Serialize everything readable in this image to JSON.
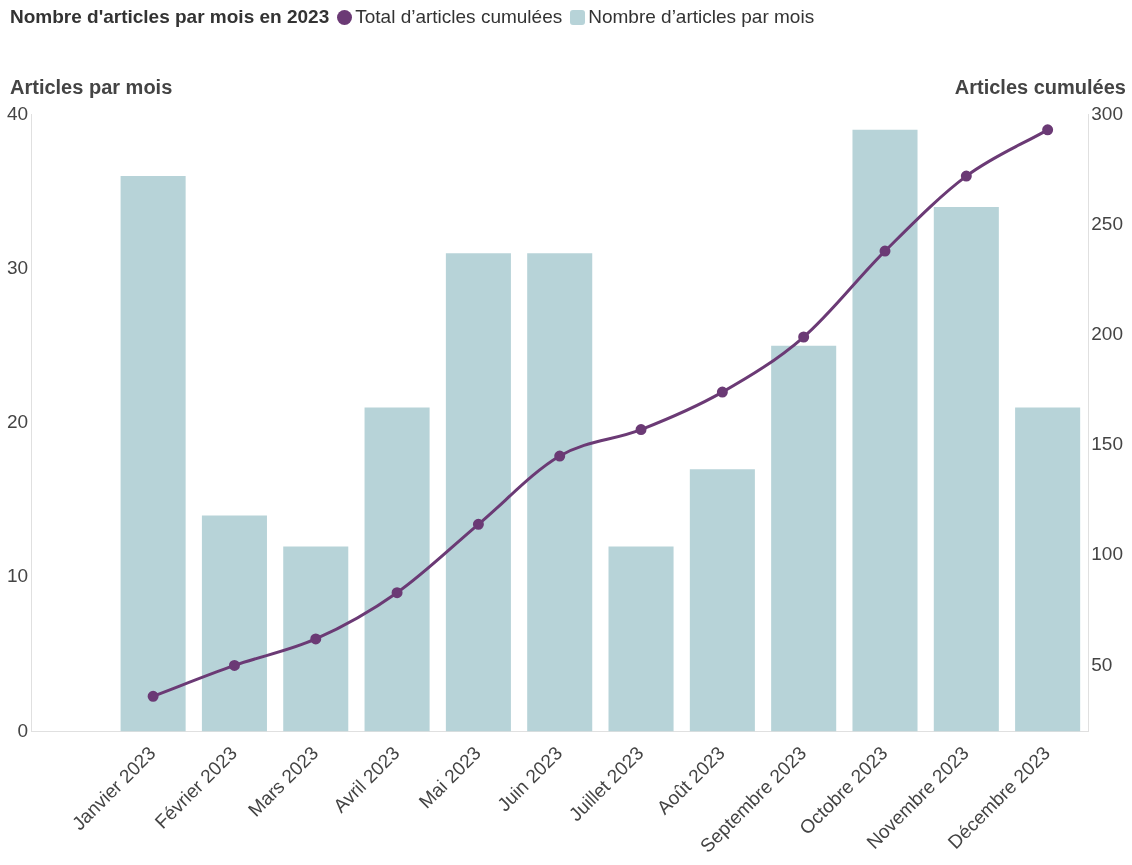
{
  "chart_data": {
    "type": "bar",
    "title": "Nombre d'articles par mois en 2023",
    "ylabel": "Articles par mois",
    "y2label": "Articles cumulées",
    "categories": [
      null,
      "Janvier 2023",
      "Février 2023",
      "Mars 2023",
      "Avril 2023",
      "Mai 2023",
      "Juin 2023",
      "Juillet 2023",
      "Août 2023",
      "Septembre 2023",
      "Octobre 2023",
      "Novembre 2023",
      "Décembre 2023"
    ],
    "series": [
      {
        "name": "Total d’articles cumulées",
        "type": "line",
        "axis": "y2",
        "color": "#6b3a75",
        "marker": "circle",
        "values": [
          null,
          36,
          50,
          62,
          83,
          114,
          145,
          157,
          174,
          199,
          238,
          272,
          293
        ]
      },
      {
        "name": "Nombre d’articles par mois",
        "color": "#b7d3d8",
        "values": [
          null,
          36,
          14,
          12,
          21,
          31,
          31,
          12,
          17,
          25,
          39,
          34,
          21
        ]
      }
    ],
    "ylim": [
      0,
      40
    ],
    "yticks": [
      0,
      10,
      20,
      30,
      40
    ],
    "y2lim": [
      20,
      300
    ],
    "y2ticks": [
      50,
      100,
      150,
      200,
      250,
      300
    ],
    "grid": false,
    "legend": "top left"
  }
}
